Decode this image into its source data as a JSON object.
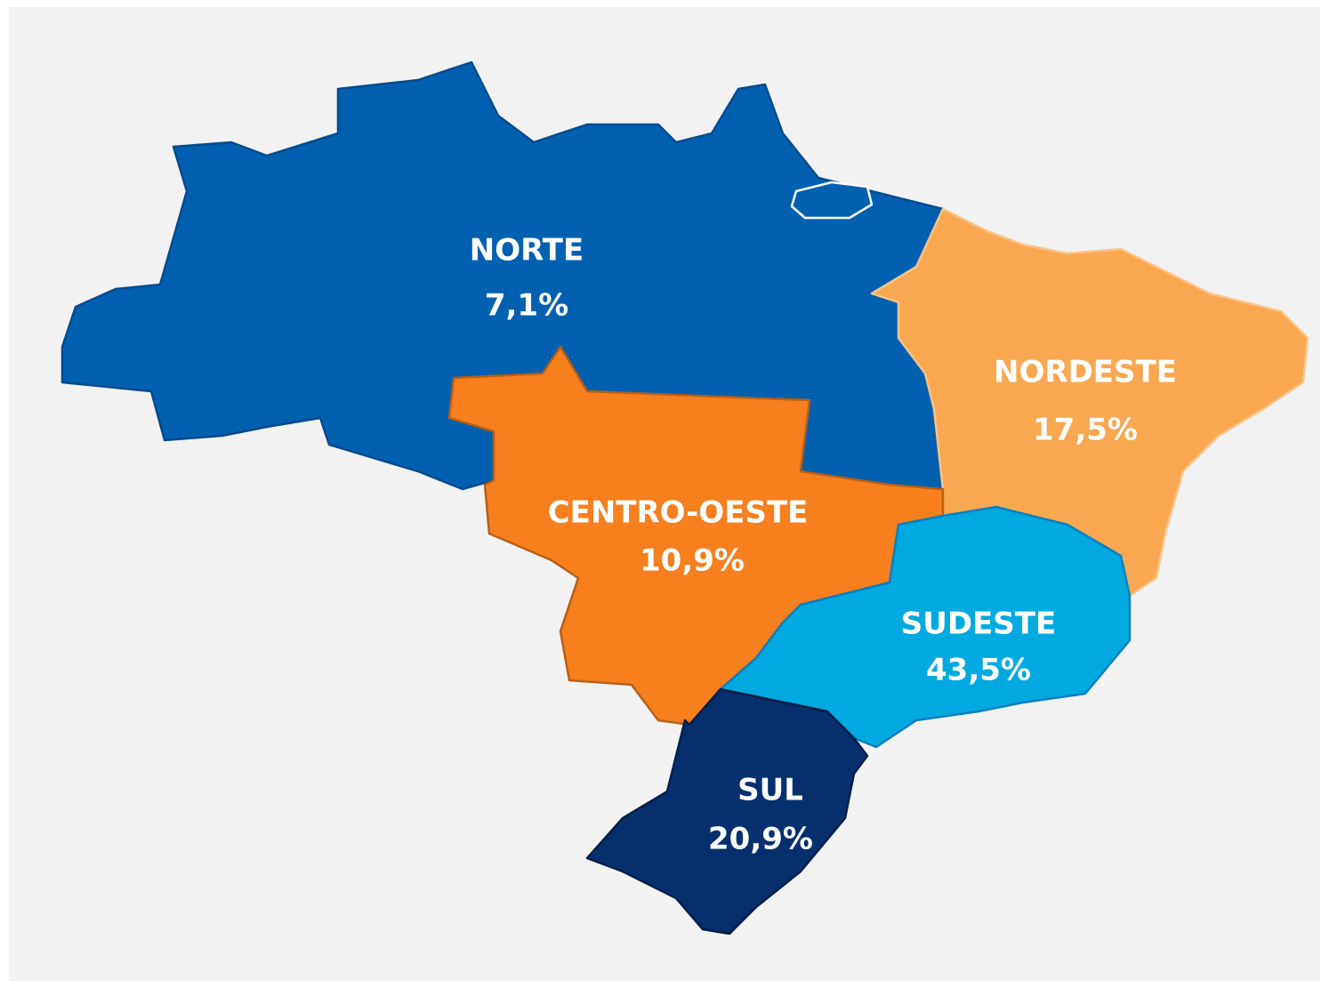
{
  "regions": [
    {
      "name": "NORTE",
      "value": "7,1%"
    },
    {
      "name": "NORDESTE",
      "value": "17,5%"
    },
    {
      "name": "CENTRO-OESTE",
      "value": "10,9%"
    },
    {
      "name": "SUDESTE",
      "value": "43,5%"
    },
    {
      "name": "SUL",
      "value": "20,9%"
    }
  ]
}
